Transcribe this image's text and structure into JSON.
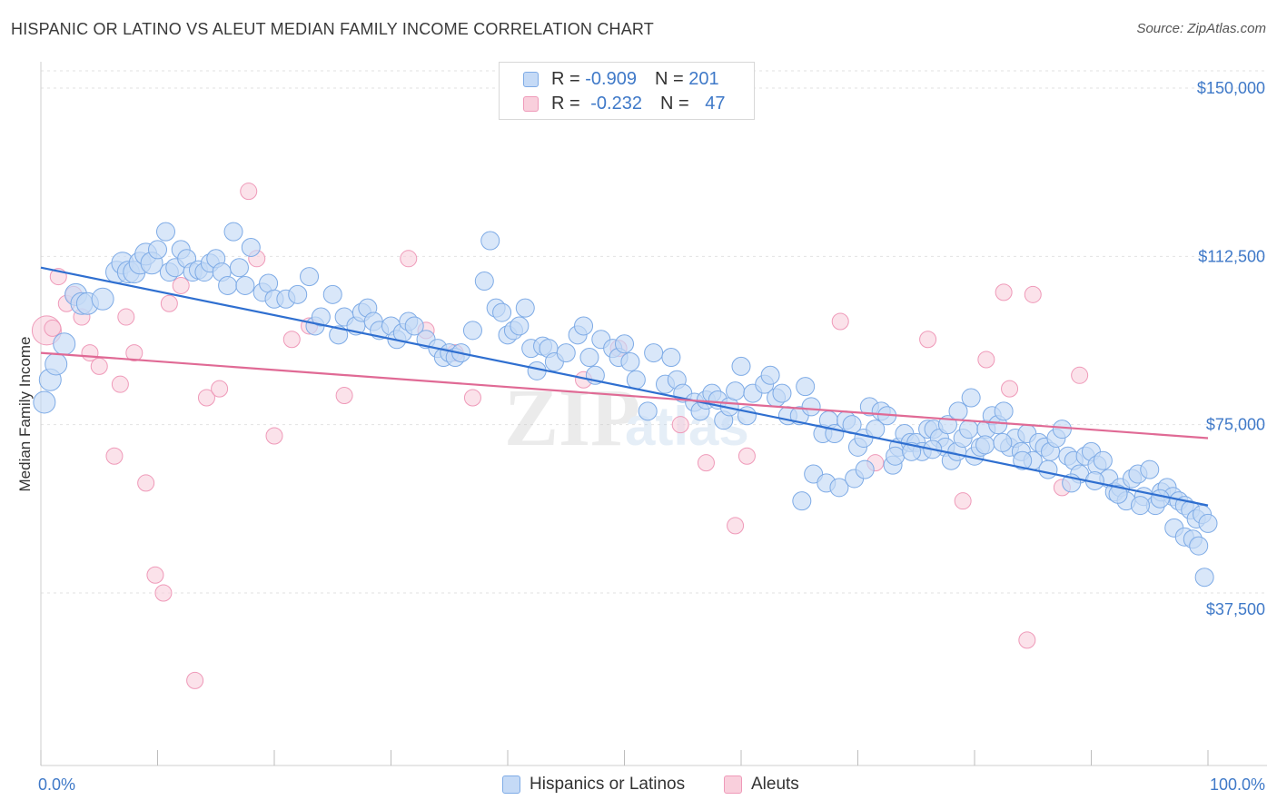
{
  "header": {
    "title": "HISPANIC OR LATINO VS ALEUT MEDIAN FAMILY INCOME CORRELATION CHART",
    "source": "Source: ZipAtlas.com"
  },
  "legend": {
    "rows": [
      {
        "r_label": "R = ",
        "r_value": "-0.909",
        "n_label": "N = ",
        "n_value": "201",
        "color": "#7eabe6",
        "fill": "#c5daf6"
      },
      {
        "r_label": "R = ",
        "r_value": "-0.232",
        "n_label": "N = ",
        "n_value": "47",
        "color": "#ef9ab9",
        "fill": "#f9cfdc"
      }
    ]
  },
  "watermark": {
    "zip": "ZIP",
    "atlas": "atlas"
  },
  "chart_data": {
    "type": "scatter",
    "title": "HISPANIC OR LATINO VS ALEUT MEDIAN FAMILY INCOME CORRELATION CHART",
    "xlabel": "",
    "ylabel": "Median Family Income",
    "x_tick_labels": [
      "0.0%",
      "100.0%"
    ],
    "y_tick_labels": [
      "$150,000",
      "$112,500",
      "$75,000",
      "$37,500"
    ],
    "y_ticks": [
      150000,
      112500,
      75000,
      37500
    ],
    "xlim": [
      0,
      100
    ],
    "ylim": [
      0,
      150000
    ],
    "grid": true,
    "legend_position": "bottom",
    "series": [
      {
        "name": "Hispanics or Latinos",
        "color": "#7eabe6",
        "fill": "#c5daf6",
        "trend": {
          "x": [
            0,
            100
          ],
          "y": [
            110000,
            57000
          ]
        },
        "points": [
          [
            0.3,
            80000
          ],
          [
            0.8,
            85000
          ],
          [
            1.3,
            88500
          ],
          [
            2.0,
            93000
          ],
          [
            3.0,
            104000
          ],
          [
            3.5,
            102000
          ],
          [
            4.0,
            102000
          ],
          [
            5.3,
            103000
          ],
          [
            6.5,
            109000
          ],
          [
            7.0,
            111000
          ],
          [
            7.5,
            109000
          ],
          [
            8.0,
            109000
          ],
          [
            8.5,
            111000
          ],
          [
            9.0,
            113000
          ],
          [
            9.5,
            111000
          ],
          [
            10.0,
            114000
          ],
          [
            10.7,
            118000
          ],
          [
            11.0,
            109000
          ],
          [
            11.5,
            110000
          ],
          [
            12.0,
            114000
          ],
          [
            12.5,
            112000
          ],
          [
            13.0,
            109000
          ],
          [
            13.5,
            109500
          ],
          [
            14.0,
            109000
          ],
          [
            14.5,
            111000
          ],
          [
            15.0,
            112000
          ],
          [
            15.5,
            109000
          ],
          [
            16.0,
            106000
          ],
          [
            16.5,
            118000
          ],
          [
            17.0,
            110000
          ],
          [
            17.5,
            106000
          ],
          [
            18.0,
            114500
          ],
          [
            19.0,
            104500
          ],
          [
            19.5,
            106500
          ],
          [
            20.0,
            103000
          ],
          [
            21.0,
            103000
          ],
          [
            22.0,
            104000
          ],
          [
            23.0,
            108000
          ],
          [
            23.5,
            97000
          ],
          [
            24.0,
            99000
          ],
          [
            25.0,
            104000
          ],
          [
            25.5,
            95000
          ],
          [
            26.0,
            99000
          ],
          [
            27.0,
            97000
          ],
          [
            27.5,
            100000
          ],
          [
            28.0,
            101000
          ],
          [
            28.5,
            98000
          ],
          [
            29.0,
            96000
          ],
          [
            30.0,
            97000
          ],
          [
            30.5,
            94000
          ],
          [
            31.0,
            95500
          ],
          [
            31.5,
            98000
          ],
          [
            32.0,
            97000
          ],
          [
            33.0,
            94000
          ],
          [
            34.0,
            92000
          ],
          [
            34.5,
            90000
          ],
          [
            35.0,
            91000
          ],
          [
            35.5,
            90000
          ],
          [
            36.0,
            91000
          ],
          [
            37.0,
            96000
          ],
          [
            38.0,
            107000
          ],
          [
            38.5,
            116000
          ],
          [
            39.0,
            101000
          ],
          [
            39.5,
            100000
          ],
          [
            40.0,
            95000
          ],
          [
            40.5,
            96000
          ],
          [
            41.0,
            97000
          ],
          [
            41.5,
            101000
          ],
          [
            42.0,
            92000
          ],
          [
            42.5,
            87000
          ],
          [
            43.0,
            92500
          ],
          [
            43.5,
            92000
          ],
          [
            44.0,
            89000
          ],
          [
            45.0,
            91000
          ],
          [
            46.0,
            95000
          ],
          [
            46.5,
            97000
          ],
          [
            47.0,
            90000
          ],
          [
            47.5,
            86000
          ],
          [
            48.0,
            94000
          ],
          [
            49.0,
            92000
          ],
          [
            49.5,
            90000
          ],
          [
            50.0,
            93000
          ],
          [
            50.5,
            89000
          ],
          [
            51.0,
            85000
          ],
          [
            52.0,
            78000
          ],
          [
            52.5,
            91000
          ],
          [
            53.5,
            84000
          ],
          [
            54.0,
            90000
          ],
          [
            54.5,
            85000
          ],
          [
            55.0,
            82000
          ],
          [
            56.0,
            80000
          ],
          [
            56.5,
            78000
          ],
          [
            57.0,
            80500
          ],
          [
            57.5,
            82000
          ],
          [
            58.0,
            80500
          ],
          [
            58.5,
            76000
          ],
          [
            59.0,
            79000
          ],
          [
            59.5,
            82500
          ],
          [
            60.0,
            88000
          ],
          [
            60.5,
            77000
          ],
          [
            61.0,
            82000
          ],
          [
            62.0,
            84000
          ],
          [
            62.5,
            86000
          ],
          [
            63.0,
            81000
          ],
          [
            63.5,
            82000
          ],
          [
            64.0,
            77000
          ],
          [
            65.0,
            77000
          ],
          [
            65.5,
            83500
          ],
          [
            66.0,
            79000
          ],
          [
            67.0,
            73000
          ],
          [
            67.5,
            76000
          ],
          [
            68.0,
            73000
          ],
          [
            69.0,
            76000
          ],
          [
            69.5,
            75000
          ],
          [
            70.0,
            70000
          ],
          [
            70.5,
            72000
          ],
          [
            71.0,
            79000
          ],
          [
            71.5,
            74000
          ],
          [
            72.0,
            78000
          ],
          [
            72.5,
            77000
          ],
          [
            73.0,
            66000
          ],
          [
            73.5,
            70000
          ],
          [
            74.0,
            73000
          ],
          [
            74.5,
            71000
          ],
          [
            75.0,
            71000
          ],
          [
            75.5,
            69000
          ],
          [
            76.0,
            74000
          ],
          [
            76.5,
            74000
          ],
          [
            77.0,
            72000
          ],
          [
            77.5,
            70000
          ],
          [
            78.0,
            67000
          ],
          [
            78.5,
            69000
          ],
          [
            79.0,
            72000
          ],
          [
            79.5,
            74000
          ],
          [
            80.0,
            68000
          ],
          [
            80.5,
            70000
          ],
          [
            81.0,
            74000
          ],
          [
            81.5,
            77000
          ],
          [
            82.0,
            75000
          ],
          [
            82.5,
            78000
          ],
          [
            83.0,
            70000
          ],
          [
            83.5,
            72000
          ],
          [
            84.0,
            69000
          ],
          [
            84.5,
            73000
          ],
          [
            85.0,
            67000
          ],
          [
            85.5,
            71000
          ],
          [
            86.0,
            70000
          ],
          [
            86.5,
            69000
          ],
          [
            87.0,
            72000
          ],
          [
            87.5,
            74000
          ],
          [
            88.0,
            68000
          ],
          [
            88.5,
            67000
          ],
          [
            89.0,
            64000
          ],
          [
            89.5,
            68000
          ],
          [
            90.0,
            69000
          ],
          [
            90.5,
            66000
          ],
          [
            91.0,
            67000
          ],
          [
            91.5,
            63000
          ],
          [
            92.0,
            60000
          ],
          [
            92.5,
            61000
          ],
          [
            93.0,
            58000
          ],
          [
            93.5,
            63000
          ],
          [
            94.0,
            64000
          ],
          [
            94.5,
            59000
          ],
          [
            95.0,
            65000
          ],
          [
            95.5,
            57000
          ],
          [
            96.0,
            60000
          ],
          [
            96.5,
            61000
          ],
          [
            97.0,
            59000
          ],
          [
            97.5,
            58000
          ],
          [
            98.0,
            57000
          ],
          [
            98.5,
            56000
          ],
          [
            99.0,
            54000
          ],
          [
            99.5,
            55000
          ],
          [
            100.0,
            53000
          ],
          [
            65.2,
            58000
          ],
          [
            66.2,
            64000
          ],
          [
            67.3,
            62000
          ],
          [
            68.4,
            61000
          ],
          [
            69.7,
            63000
          ],
          [
            70.6,
            65000
          ],
          [
            73.2,
            68000
          ],
          [
            74.6,
            69000
          ],
          [
            76.4,
            69500
          ],
          [
            77.7,
            75000
          ],
          [
            78.6,
            78000
          ],
          [
            79.7,
            81000
          ],
          [
            80.9,
            70500
          ],
          [
            82.4,
            71000
          ],
          [
            84.1,
            67000
          ],
          [
            86.3,
            65000
          ],
          [
            88.3,
            62000
          ],
          [
            90.3,
            62500
          ],
          [
            92.3,
            59500
          ],
          [
            94.2,
            57000
          ],
          [
            95.9,
            58500
          ],
          [
            97.1,
            52000
          ],
          [
            98.0,
            50000
          ],
          [
            98.7,
            49500
          ],
          [
            99.2,
            48000
          ],
          [
            99.7,
            41000
          ]
        ]
      },
      {
        "name": "Aleuts",
        "color": "#ef9ab9",
        "fill": "#f9cfdc",
        "trend": {
          "x": [
            0,
            100
          ],
          "y": [
            91000,
            72000
          ]
        },
        "points": [
          [
            0.5,
            96000
          ],
          [
            1.0,
            96500
          ],
          [
            1.5,
            108000
          ],
          [
            2.2,
            102000
          ],
          [
            2.8,
            104000
          ],
          [
            3.5,
            99000
          ],
          [
            4.2,
            91000
          ],
          [
            5.0,
            88000
          ],
          [
            6.3,
            68000
          ],
          [
            6.8,
            84000
          ],
          [
            7.3,
            99000
          ],
          [
            8.0,
            91000
          ],
          [
            9.0,
            62000
          ],
          [
            9.8,
            41500
          ],
          [
            10.5,
            37500
          ],
          [
            11.0,
            102000
          ],
          [
            12.0,
            106000
          ],
          [
            13.2,
            18000
          ],
          [
            14.2,
            81000
          ],
          [
            15.3,
            83000
          ],
          [
            17.8,
            127000
          ],
          [
            18.5,
            112000
          ],
          [
            20.0,
            72500
          ],
          [
            21.5,
            94000
          ],
          [
            23.0,
            97000
          ],
          [
            26.0,
            81500
          ],
          [
            31.5,
            112000
          ],
          [
            33.0,
            96000
          ],
          [
            35.5,
            91000
          ],
          [
            37.0,
            81000
          ],
          [
            46.5,
            85000
          ],
          [
            49.5,
            92000
          ],
          [
            54.8,
            75000
          ],
          [
            57.0,
            66500
          ],
          [
            59.5,
            52500
          ],
          [
            60.5,
            68000
          ],
          [
            68.5,
            98000
          ],
          [
            71.5,
            66500
          ],
          [
            76.0,
            94000
          ],
          [
            79.0,
            58000
          ],
          [
            81.0,
            89500
          ],
          [
            82.5,
            104500
          ],
          [
            83.0,
            83000
          ],
          [
            84.5,
            27000
          ],
          [
            85.0,
            104000
          ],
          [
            87.5,
            61000
          ],
          [
            89.0,
            86000
          ]
        ]
      }
    ]
  },
  "bottom_legend": {
    "items": [
      {
        "label": "Hispanics or Latinos",
        "color": "#7eabe6",
        "fill": "#c5daf6"
      },
      {
        "label": "Aleuts",
        "color": "#ef9ab9",
        "fill": "#f9cfdc"
      }
    ]
  }
}
